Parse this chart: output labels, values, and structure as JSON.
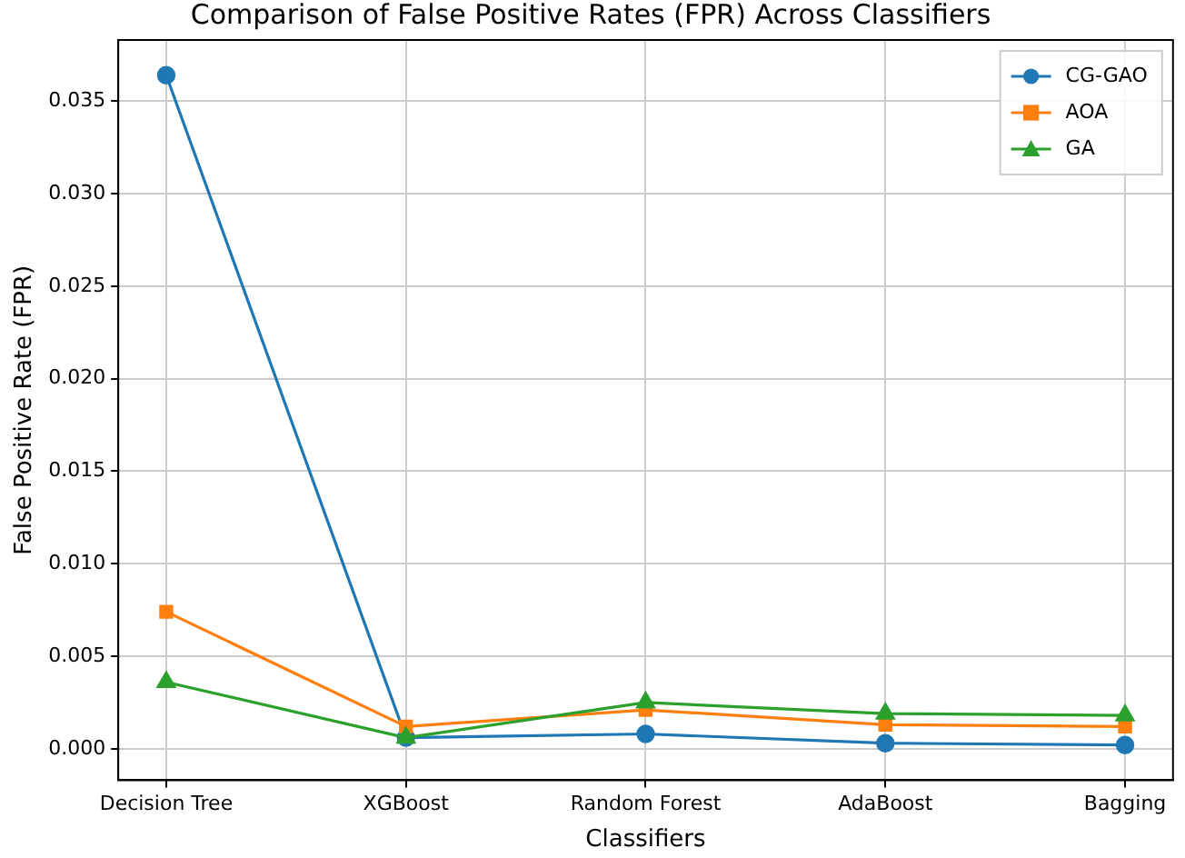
{
  "chart_data": {
    "type": "line",
    "title": "Comparison of False Positive Rates (FPR) Across Classifiers",
    "xlabel": "Classifiers",
    "ylabel": "False Positive Rate (FPR)",
    "categories": [
      "Decision Tree",
      "XGBoost",
      "Random Forest",
      "AdaBoost",
      "Bagging"
    ],
    "series": [
      {
        "name": "CG-GAO",
        "color": "#1f77b4",
        "marker": "circle",
        "values": [
          0.0364,
          0.0006,
          0.0008,
          0.0003,
          0.0002
        ]
      },
      {
        "name": "AOA",
        "color": "#ff7f0e",
        "marker": "square",
        "values": [
          0.0074,
          0.0012,
          0.0021,
          0.0013,
          0.0012
        ]
      },
      {
        "name": "GA",
        "color": "#2ca02c",
        "marker": "triangle",
        "values": [
          0.0036,
          0.0006,
          0.0025,
          0.0019,
          0.0018
        ]
      }
    ],
    "ylim": [
      -0.0017,
      0.0383
    ],
    "yticks": [
      {
        "value": 0,
        "label": "0.000"
      },
      {
        "value": 0.005,
        "label": "0.005"
      },
      {
        "value": 0.01,
        "label": "0.010"
      },
      {
        "value": 0.015,
        "label": "0.015"
      },
      {
        "value": 0.02,
        "label": "0.020"
      },
      {
        "value": 0.025,
        "label": "0.025"
      },
      {
        "value": 0.03,
        "label": "0.030"
      },
      {
        "value": 0.035,
        "label": "0.035"
      }
    ],
    "grid": true,
    "legend": "top right",
    "line_style": "solid"
  }
}
